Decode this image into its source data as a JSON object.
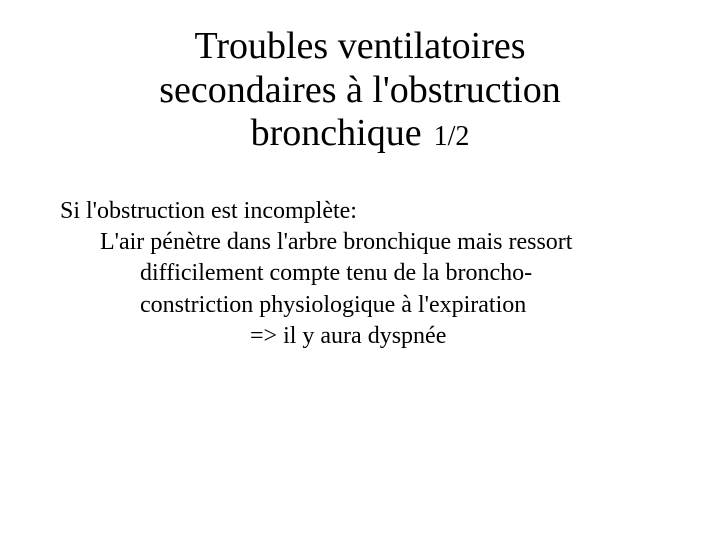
{
  "slide": {
    "title": {
      "line1": "Troubles ventilatoires",
      "line2": "secondaires à l'obstruction",
      "line3": "bronchique",
      "page": "1/2"
    },
    "body": {
      "intro": "Si l'obstruction est incomplète:",
      "detail_l1": "L'air pénètre dans l'arbre bronchique mais ressort",
      "detail_l2": "difficilement compte tenu de la broncho-",
      "detail_l3": "constriction physiologique à l'expiration",
      "conclusion": "=> il y aura dyspnée"
    },
    "styles": {
      "background_color": "#ffffff",
      "text_color": "#000000",
      "title_fontsize": 38,
      "page_fontsize": 28,
      "body_fontsize": 24,
      "font_family": "Times New Roman"
    }
  }
}
